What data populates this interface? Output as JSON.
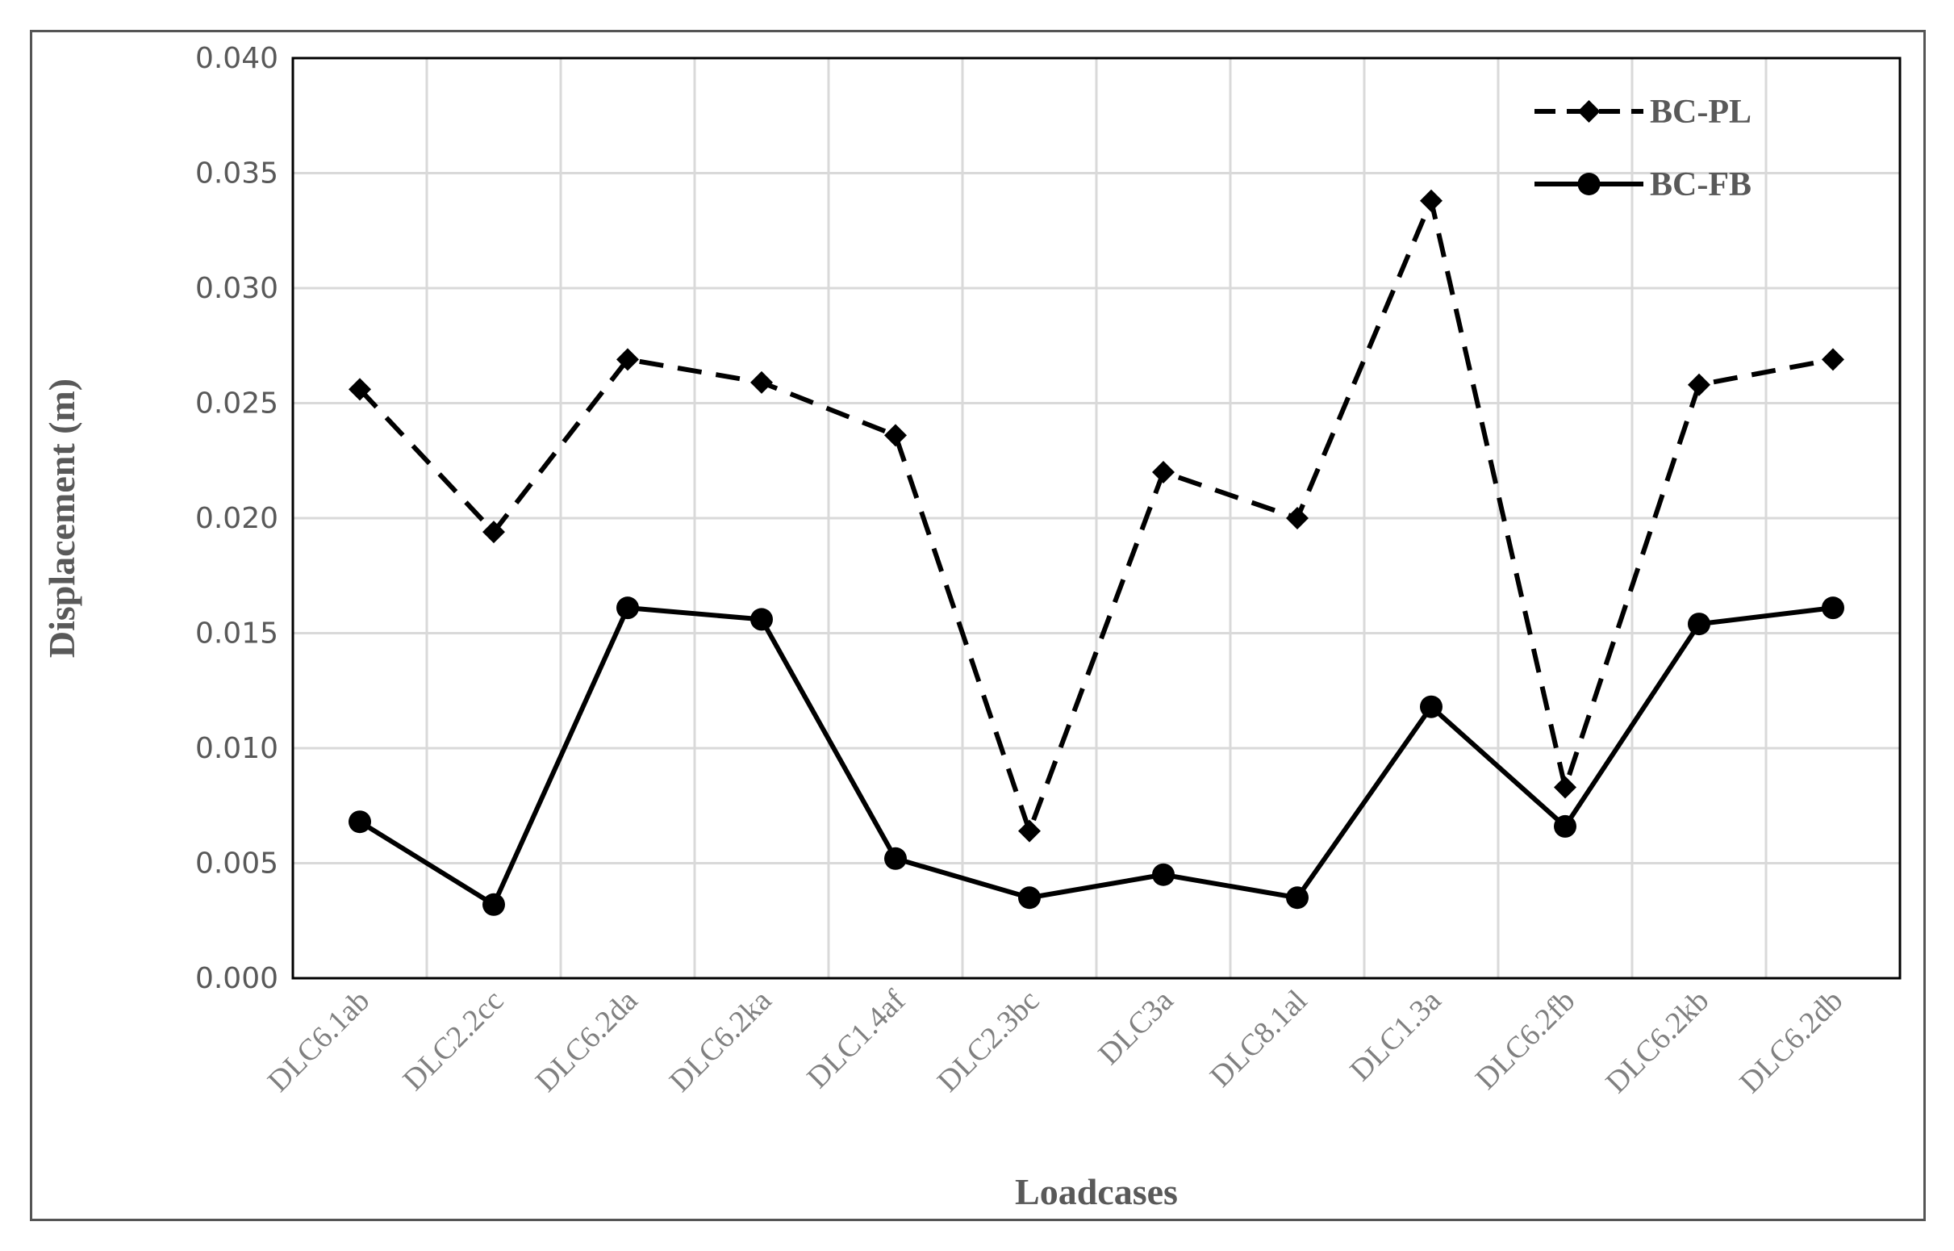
{
  "chart_data": {
    "type": "line",
    "xlabel": "Loadcases",
    "ylabel": "Displacement (m)",
    "ylim": [
      0,
      0.04
    ],
    "yticks": [
      "0.000",
      "0.005",
      "0.010",
      "0.015",
      "0.020",
      "0.025",
      "0.030",
      "0.035",
      "0.040"
    ],
    "grid": true,
    "legend_position": "top-right",
    "categories": [
      "DLC6.1ab",
      "DLC2.2cc",
      "DLC6.2da",
      "DLC6.2ka",
      "DLC1.4af",
      "DLC2.3bc",
      "DLC3a",
      "DLC8.1al",
      "DLC1.3a",
      "DLC6.2fb",
      "DLC6.2kb",
      "DLC6.2db"
    ],
    "series": [
      {
        "name": "BC-PL",
        "line_style": "dashed",
        "marker": "diamond",
        "color": "#000000",
        "values": [
          0.0256,
          0.0194,
          0.0269,
          0.0259,
          0.0236,
          0.0064,
          0.022,
          0.02,
          0.0338,
          0.0083,
          0.0258,
          0.0269
        ]
      },
      {
        "name": "BC-FB",
        "line_style": "solid",
        "marker": "circle",
        "color": "#000000",
        "values": [
          0.0068,
          0.0032,
          0.0161,
          0.0156,
          0.0052,
          0.0035,
          0.0045,
          0.0035,
          0.0118,
          0.0066,
          0.0154,
          0.0161
        ]
      }
    ]
  }
}
